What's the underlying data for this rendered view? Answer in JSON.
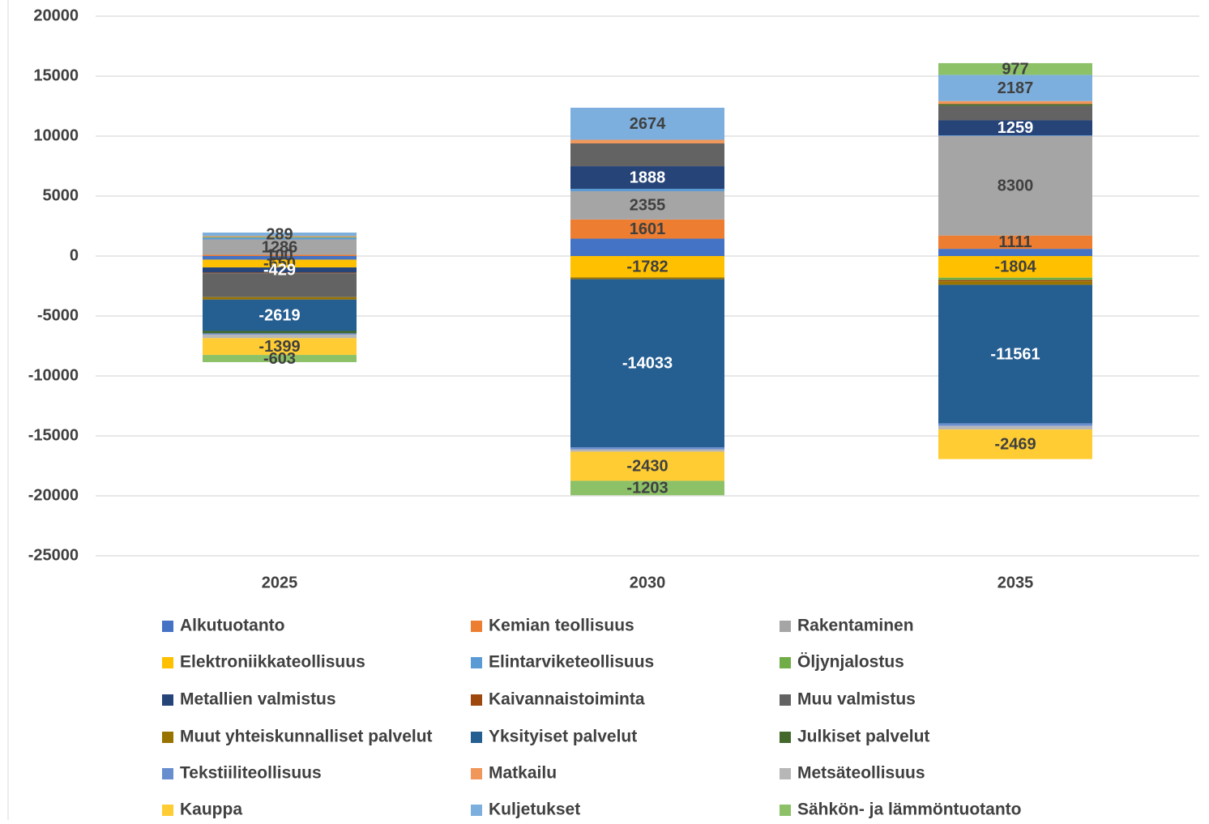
{
  "chart_data": {
    "type": "stacked_bar",
    "categories": [
      "2025",
      "2030",
      "2035"
    ],
    "ylim": [
      -25000,
      20000
    ],
    "yticks": [
      -25000,
      -20000,
      -15000,
      -10000,
      -5000,
      0,
      5000,
      10000,
      15000,
      20000
    ],
    "grid": true,
    "legend": "bottom",
    "series": [
      {
        "name": "Alkutuotanto",
        "color": "#4472c4",
        "values": [
          -300,
          1450,
          600
        ],
        "data_labels": false
      },
      {
        "name": "Kemian teollisuus",
        "color": "#ed7d31",
        "values": [
          100,
          1601,
          1111
        ],
        "data_labels": true
      },
      {
        "name": "Rakentaminen",
        "color": "#a5a5a5",
        "values": [
          1286,
          2355,
          8300
        ],
        "data_labels": true
      },
      {
        "name": "Elektroniikkateollisuus",
        "color": "#ffc000",
        "values": [
          -650,
          -1782,
          -1804
        ],
        "data_labels": true
      },
      {
        "name": "Elintarviketeollisuus",
        "color": "#5b9bd5",
        "values": [
          152,
          200,
          50
        ],
        "data_labels": false
      },
      {
        "name": "Öljynjalostus",
        "color": "#70ad47",
        "values": [
          50,
          0,
          -200
        ],
        "data_labels": false
      },
      {
        "name": "Metallien valmistus",
        "color": "#264478",
        "values": [
          -429,
          1888,
          1259
        ],
        "data_labels": true
      },
      {
        "name": "Kaivannaistoiminta",
        "color": "#9e480e",
        "values": [
          -50,
          0,
          -100
        ],
        "data_labels": false
      },
      {
        "name": "Muu valmistus",
        "color": "#636363",
        "values": [
          -2000,
          1900,
          1200
        ],
        "data_labels": false
      },
      {
        "name": "Muut yhteiskunnalliset palvelut",
        "color": "#997300",
        "values": [
          -200,
          -150,
          -300
        ],
        "data_labels": false
      },
      {
        "name": "Yksityiset palvelut",
        "color": "#255e91",
        "values": [
          -2619,
          -14033,
          -11561
        ],
        "data_labels": true
      },
      {
        "name": "Julkiset palvelut",
        "color": "#43682b",
        "values": [
          -200,
          0,
          150
        ],
        "data_labels": false
      },
      {
        "name": "Tekstiiliteollisuus",
        "color": "#698ed0",
        "values": [
          -100,
          -150,
          -200
        ],
        "data_labels": false
      },
      {
        "name": "Matkailu",
        "color": "#f1975a",
        "values": [
          80,
          300,
          250
        ],
        "data_labels": false
      },
      {
        "name": "Metsäteollisuus",
        "color": "#b7b7b7",
        "values": [
          -300,
          -200,
          -300
        ],
        "data_labels": false
      },
      {
        "name": "Kauppa",
        "color": "#ffcd33",
        "values": [
          -1399,
          -2430,
          -2469
        ],
        "data_labels": true
      },
      {
        "name": "Kuljetukset",
        "color": "#7cafdd",
        "values": [
          289,
          2674,
          2187
        ],
        "data_labels": true
      },
      {
        "name": "Sähkön- ja lämmöntuotanto",
        "color": "#8cc168",
        "values": [
          -603,
          -1203,
          977
        ],
        "data_labels": true
      }
    ]
  }
}
